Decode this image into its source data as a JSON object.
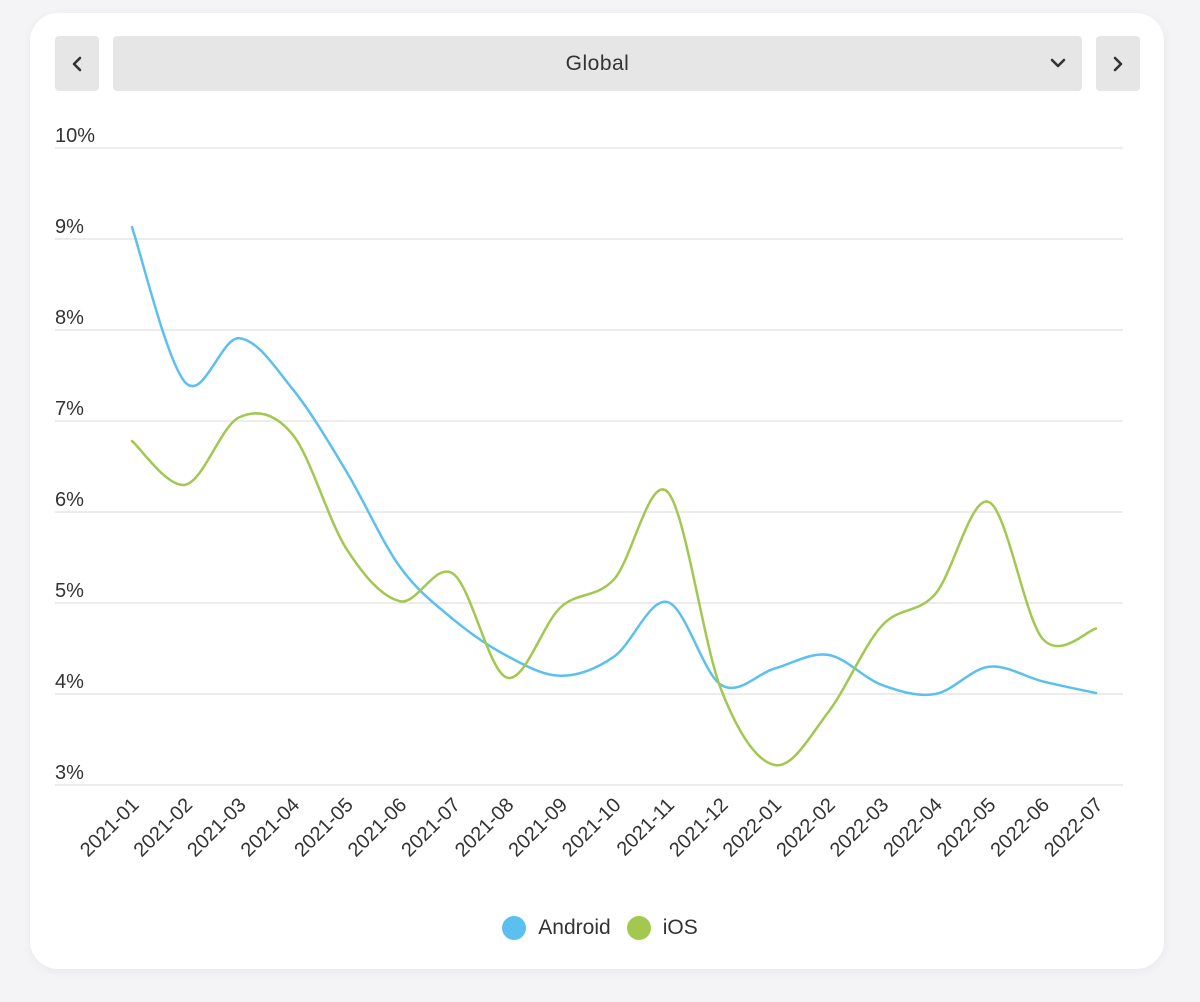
{
  "controls": {
    "selected_region": "Global",
    "prev_icon": "chevron-left-icon",
    "next_icon": "chevron-right-icon",
    "dropdown_icon": "chevron-down-icon"
  },
  "chart_data": {
    "type": "line",
    "title": "",
    "xlabel": "",
    "ylabel": "",
    "ylim": [
      3,
      10
    ],
    "y_ticks": [
      3,
      4,
      5,
      6,
      7,
      8,
      9,
      10
    ],
    "y_tick_labels": [
      "3%",
      "4%",
      "5%",
      "6%",
      "7%",
      "8%",
      "9%",
      "10%"
    ],
    "grid": true,
    "legend": "bottom-center",
    "categories": [
      "2021-01",
      "2021-02",
      "2021-03",
      "2021-04",
      "2021-05",
      "2021-06",
      "2021-07",
      "2021-08",
      "2021-09",
      "2021-10",
      "2021-11",
      "2021-12",
      "2022-01",
      "2022-02",
      "2022-03",
      "2022-04",
      "2022-05",
      "2022-06",
      "2022-07"
    ],
    "series": [
      {
        "name": "Android",
        "color": "#5bc0f0",
        "values": [
          9.13,
          7.42,
          7.91,
          7.35,
          6.45,
          5.4,
          4.82,
          4.42,
          4.2,
          4.41,
          5.01,
          4.1,
          4.28,
          4.43,
          4.1,
          4.0,
          4.3,
          4.14,
          4.01
        ]
      },
      {
        "name": "iOS",
        "color": "#a2c850",
        "values": [
          6.78,
          6.3,
          7.04,
          6.85,
          5.6,
          5.02,
          5.32,
          4.18,
          4.95,
          5.26,
          6.22,
          4.05,
          3.22,
          3.8,
          4.75,
          5.1,
          6.11,
          4.61,
          4.72
        ]
      }
    ]
  }
}
